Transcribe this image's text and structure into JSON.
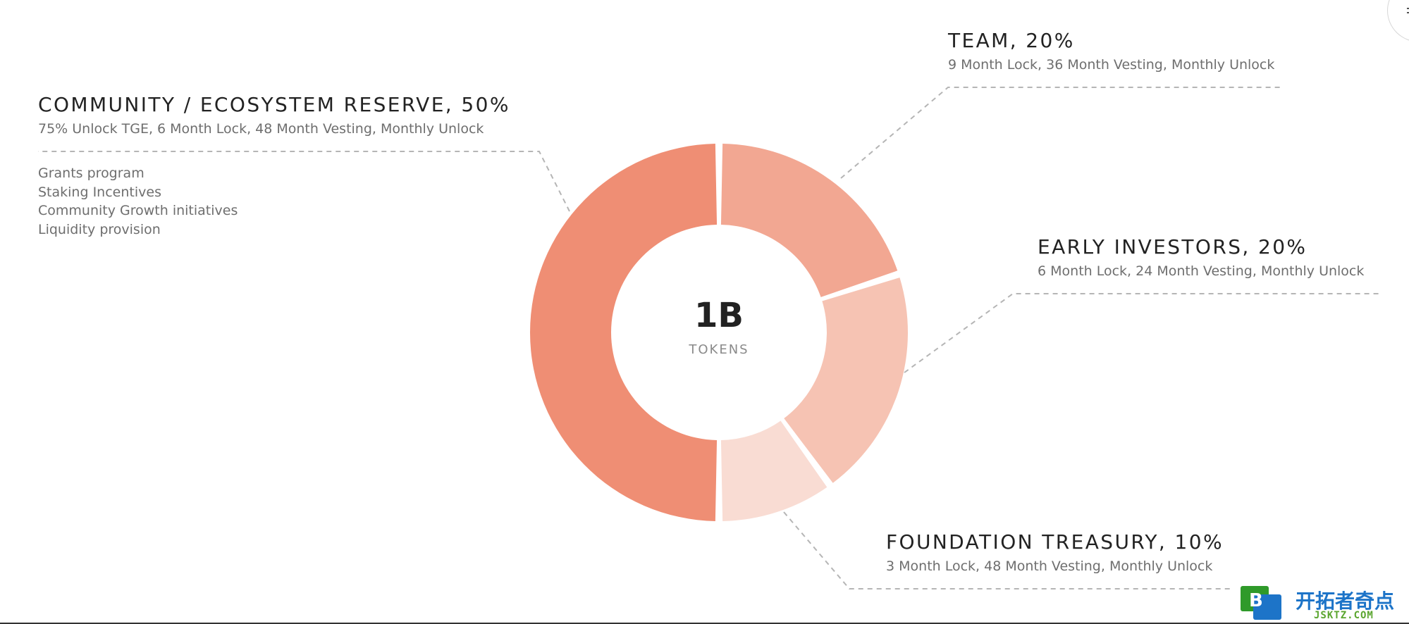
{
  "chart_data": {
    "type": "pie",
    "donut": true,
    "center_value": "1B",
    "center_unit": "TOKENS",
    "colors": {
      "community": "#EF8E74",
      "team": "#F2A792",
      "investors": "#F6C3B3",
      "treasury": "#F9DCD3",
      "title": "#222222",
      "subtitle": "#6E6E6E",
      "leader": "#B5B5B5"
    },
    "slices": [
      {
        "name": "Team",
        "value": 20,
        "title": "TEAM, 20%",
        "subtitle": "9 Month Lock, 36 Month Vesting, Monthly Unlock"
      },
      {
        "name": "Early Investors",
        "value": 20,
        "title": "EARLY INVESTORS, 20%",
        "subtitle": "6 Month Lock, 24 Month Vesting, Monthly Unlock"
      },
      {
        "name": "Foundation Treasury",
        "value": 10,
        "title": "FOUNDATION TREASURY, 10%",
        "subtitle": "3 Month Lock, 48 Month Vesting, Monthly Unlock"
      },
      {
        "name": "Community / Ecosystem Reserve",
        "value": 50,
        "title": "COMMUNITY / ECOSYSTEM RESERVE, 50%",
        "subtitle": "75% Unlock TGE, 6 Month Lock, 48 Month Vesting, Monthly Unlock",
        "notes": [
          "Grants program",
          "Staking Incentives",
          "Community Growth initiatives",
          "Liquidity provision"
        ]
      }
    ]
  },
  "watermark": {
    "text": "开拓者奇点",
    "url": "JSKTZ.COM"
  },
  "icons": {
    "corner": "menu-icon",
    "watermark_logo": "b-logo-icon"
  }
}
